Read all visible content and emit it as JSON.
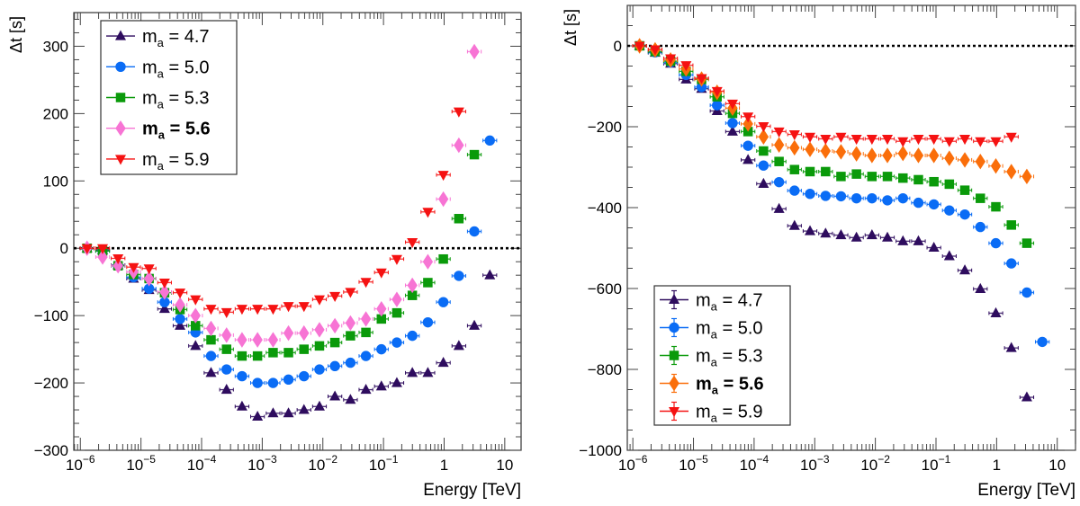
{
  "chart_data": [
    {
      "type": "scatter",
      "panel": "left",
      "title": "",
      "xlabel": "Energy [TeV]",
      "ylabel": "Δt [s]",
      "xscale": "log",
      "xlim": [
        7.8e-07,
        18.6
      ],
      "ylim": [
        -300,
        350
      ],
      "xticks": [
        {
          "value": 1e-06,
          "label": "10^-6"
        },
        {
          "value": 1e-05,
          "label": "10^-5"
        },
        {
          "value": 0.0001,
          "label": "10^-4"
        },
        {
          "value": 0.001,
          "label": "10^-3"
        },
        {
          "value": 0.01,
          "label": "10^-2"
        },
        {
          "value": 0.1,
          "label": "10^-1"
        },
        {
          "value": 1,
          "label": "1"
        },
        {
          "value": 10,
          "label": "10"
        }
      ],
      "yticks": [
        -300,
        -200,
        -100,
        0,
        100,
        200,
        300
      ],
      "reference_line": {
        "y": 0,
        "style": "dotted",
        "color": "#000000"
      },
      "legend": {
        "position": "top-left",
        "highlight": "m_a = 5.6"
      },
      "grid": false,
      "energies": [
        1.29e-06,
        2.33e-06,
        4.19e-06,
        7.55e-06,
        1.36e-05,
        2.45e-05,
        4.41e-05,
        7.94e-05,
        0.000143,
        0.000258,
        0.000464,
        0.000836,
        0.00151,
        0.00271,
        0.00488,
        0.00879,
        0.0158,
        0.0285,
        0.0513,
        0.0923,
        0.166,
        0.299,
        0.539,
        0.971,
        1.75,
        3.15,
        5.67
      ],
      "series": [
        {
          "name": "m_a = 4.7",
          "label_main": "m",
          "label_sub": "a",
          "label_rest": " = 4.7",
          "bold": false,
          "marker": "triangle-up",
          "color": "#2e0c5e",
          "values": [
            0,
            -3,
            -25,
            -45,
            -62,
            -90,
            -115,
            -145,
            -185,
            -210,
            -235,
            -250,
            -245,
            -245,
            -240,
            -235,
            -220,
            -225,
            -210,
            -205,
            -200,
            -185,
            -185,
            -170,
            -145,
            -115,
            -40
          ]
        },
        {
          "name": "m_a = 5.0",
          "label_main": "m",
          "label_sub": "a",
          "label_rest": " = 5.0",
          "bold": false,
          "marker": "circle",
          "color": "#0a6cf5",
          "values": [
            0,
            -4,
            -26,
            -43,
            -60,
            -80,
            -105,
            -125,
            -160,
            -180,
            -190,
            -200,
            -200,
            -195,
            -190,
            -180,
            -175,
            -170,
            -160,
            -150,
            -140,
            -130,
            -110,
            -80,
            -41,
            25,
            160
          ]
        },
        {
          "name": "m_a = 5.3",
          "label_main": "m",
          "label_sub": "a",
          "label_rest": " = 5.3",
          "bold": false,
          "marker": "square",
          "color": "#0a9a0a",
          "values": [
            0,
            -4,
            -26,
            -39,
            -45,
            -66,
            -91,
            -115,
            -136,
            -150,
            -160,
            -160,
            -155,
            -155,
            -150,
            -145,
            -140,
            -130,
            -125,
            -105,
            -96,
            -70,
            -51,
            -16,
            44,
            139
          ]
        },
        {
          "name": "m_a = 5.6",
          "label_main": "m",
          "label_sub": "a",
          "label_rest": " = 5.6",
          "bold": true,
          "marker": "diamond",
          "color": "#f774d4",
          "values": [
            0,
            -13,
            -26,
            -35,
            -45,
            -65,
            -84,
            -100,
            -119,
            -129,
            -136,
            -136,
            -136,
            -126,
            -126,
            -121,
            -115,
            -111,
            -105,
            -90,
            -76,
            -55,
            -20,
            73,
            153,
            292
          ]
        },
        {
          "name": "m_a = 5.9",
          "label_main": "m",
          "label_sub": "a",
          "label_rest": " = 5.9",
          "bold": false,
          "marker": "triangle-down",
          "color": "#f51212",
          "values": [
            0,
            0,
            -15,
            -28,
            -30,
            -51,
            -66,
            -76,
            -90,
            -95,
            -90,
            -90,
            -90,
            -86,
            -86,
            -76,
            -71,
            -65,
            -50,
            -36,
            -16,
            9,
            54,
            109,
            203
          ]
        }
      ]
    },
    {
      "type": "scatter",
      "panel": "right",
      "title": "",
      "xlabel": "Energy [TeV]",
      "ylabel": "Δt [s]",
      "xscale": "log",
      "xlim": [
        8.1e-07,
        20.0
      ],
      "ylim": [
        -1000,
        100
      ],
      "xticks": [
        {
          "value": 1e-06,
          "label": "10^-6"
        },
        {
          "value": 1e-05,
          "label": "10^-5"
        },
        {
          "value": 0.0001,
          "label": "10^-4"
        },
        {
          "value": 0.001,
          "label": "10^-3"
        },
        {
          "value": 0.01,
          "label": "10^-2"
        },
        {
          "value": 0.1,
          "label": "10^-1"
        },
        {
          "value": 1,
          "label": "1"
        },
        {
          "value": 10,
          "label": "10"
        }
      ],
      "yticks": [
        -1000,
        -800,
        -600,
        -400,
        -200,
        0
      ],
      "reference_line": {
        "y": 0,
        "style": "dotted",
        "color": "#000000"
      },
      "legend": {
        "position": "bottom-left",
        "highlight": "m_a = 5.6"
      },
      "grid": false,
      "energies": [
        1.29e-06,
        2.33e-06,
        4.19e-06,
        7.55e-06,
        1.36e-05,
        2.45e-05,
        4.41e-05,
        7.94e-05,
        0.000143,
        0.000258,
        0.000464,
        0.000836,
        0.00151,
        0.00271,
        0.00488,
        0.00879,
        0.0158,
        0.0285,
        0.0513,
        0.0923,
        0.166,
        0.299,
        0.539,
        0.971,
        1.75,
        3.15,
        5.67
      ],
      "series": [
        {
          "name": "m_a = 4.7",
          "label_main": "m",
          "label_sub": "a",
          "label_rest": " = 4.7",
          "bold": false,
          "marker": "triangle-up",
          "color": "#2e0c5e",
          "values": [
            0,
            -17,
            -44,
            -83,
            -106,
            -161,
            -212,
            -282,
            -341,
            -403,
            -445,
            -458,
            -464,
            -468,
            -474,
            -468,
            -474,
            -483,
            -483,
            -499,
            -520,
            -555,
            -601,
            -661,
            -747,
            -869
          ]
        },
        {
          "name": "m_a = 5.0",
          "label_main": "m",
          "label_sub": "a",
          "label_rest": " = 5.0",
          "bold": false,
          "marker": "circle",
          "color": "#0a6cf5",
          "values": [
            0,
            -16,
            -41,
            -72,
            -102,
            -147,
            -191,
            -247,
            -296,
            -337,
            -358,
            -366,
            -371,
            -372,
            -377,
            -377,
            -382,
            -377,
            -388,
            -392,
            -407,
            -417,
            -448,
            -488,
            -538,
            -610,
            -732
          ]
        },
        {
          "name": "m_a = 5.3",
          "label_main": "m",
          "label_sub": "a",
          "label_rest": " = 5.3",
          "bold": false,
          "marker": "square",
          "color": "#0a9a0a",
          "values": [
            0,
            -14,
            -38,
            -63,
            -83,
            -126,
            -167,
            -212,
            -260,
            -286,
            -306,
            -311,
            -311,
            -323,
            -317,
            -323,
            -323,
            -327,
            -331,
            -336,
            -342,
            -357,
            -377,
            -398,
            -443,
            -488
          ]
        },
        {
          "name": "m_a = 5.6",
          "label_main": "m",
          "label_sub": "a",
          "label_rest": " = 5.6",
          "bold": true,
          "marker": "diamond",
          "color": "#fa6e0a",
          "values": [
            0,
            -10,
            -35,
            -57,
            -82,
            -115,
            -154,
            -193,
            -225,
            -245,
            -252,
            -256,
            -260,
            -262,
            -267,
            -271,
            -271,
            -266,
            -271,
            -271,
            -278,
            -282,
            -286,
            -297,
            -311,
            -323
          ]
        },
        {
          "name": "m_a = 5.9",
          "label_main": "m",
          "label_sub": "a",
          "label_rest": " = 5.9",
          "bold": false,
          "marker": "triangle-down",
          "color": "#f51212",
          "values": [
            0,
            -9,
            -31,
            -48,
            -80,
            -112,
            -143,
            -175,
            -199,
            -212,
            -219,
            -225,
            -230,
            -225,
            -230,
            -230,
            -230,
            -236,
            -230,
            -230,
            -236,
            -230,
            -236,
            -236,
            -225
          ]
        }
      ]
    }
  ]
}
